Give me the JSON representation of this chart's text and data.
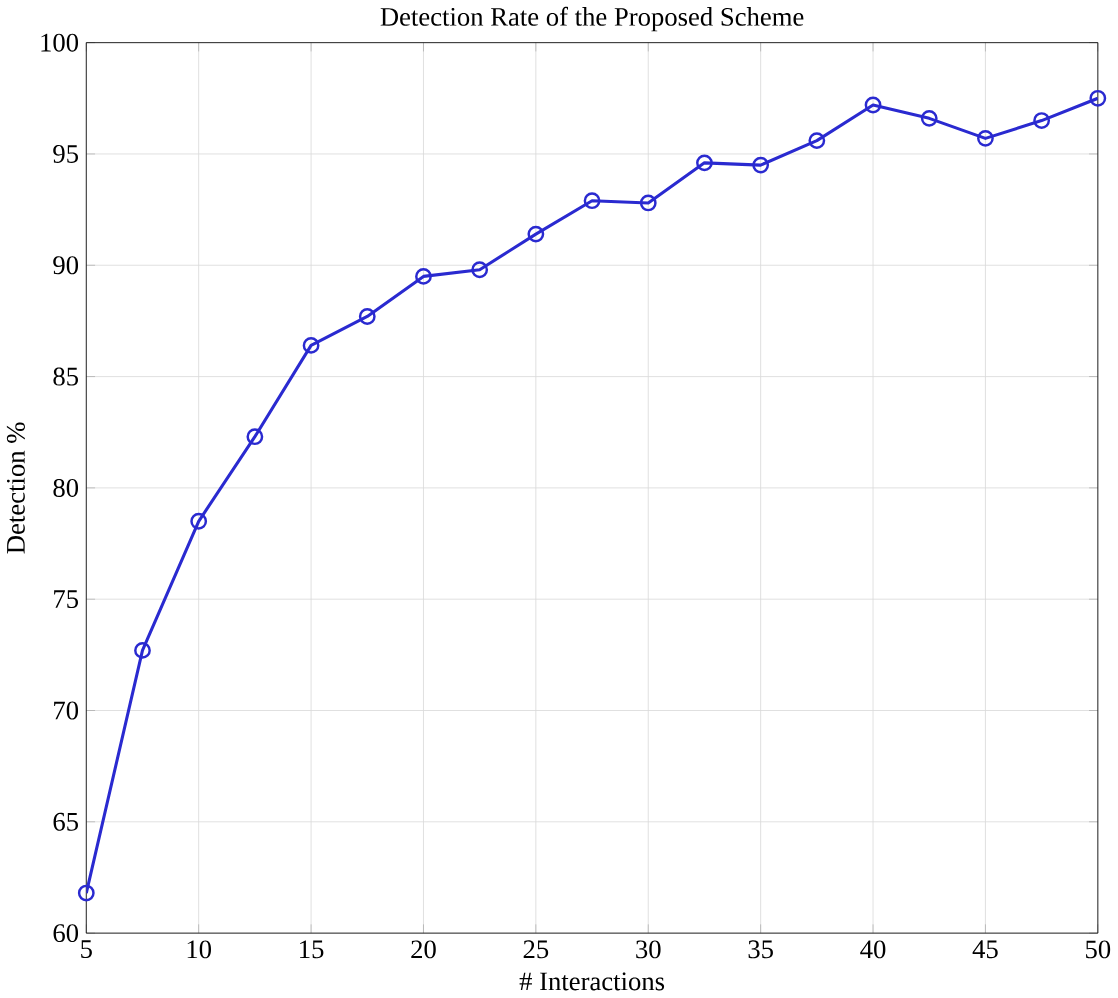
{
  "chart_data": {
    "type": "line",
    "title": "Detection Rate of the Proposed Scheme",
    "xlabel": "# Interactions",
    "ylabel": "Detection %",
    "x": [
      5,
      7.5,
      10,
      12.5,
      15,
      17.5,
      20,
      22.5,
      25,
      27.5,
      30,
      32.5,
      35,
      37.5,
      40,
      42.5,
      45,
      47.5,
      50
    ],
    "series": [
      {
        "color": "#2a2ad0",
        "values": [
          61.8,
          72.7,
          78.5,
          82.3,
          86.4,
          87.7,
          89.5,
          89.8,
          91.4,
          92.9,
          92.8,
          94.6,
          94.5,
          95.6,
          97.2,
          96.6,
          95.7,
          96.5,
          97.5
        ]
      }
    ],
    "xlim": [
      5,
      50
    ],
    "ylim": [
      60,
      100
    ],
    "xticks": [
      5,
      10,
      15,
      20,
      25,
      30,
      35,
      40,
      45,
      50
    ],
    "yticks": [
      60,
      65,
      70,
      75,
      80,
      85,
      90,
      95,
      100
    ],
    "grid": true,
    "marker": "circle",
    "line_style": "solid"
  }
}
